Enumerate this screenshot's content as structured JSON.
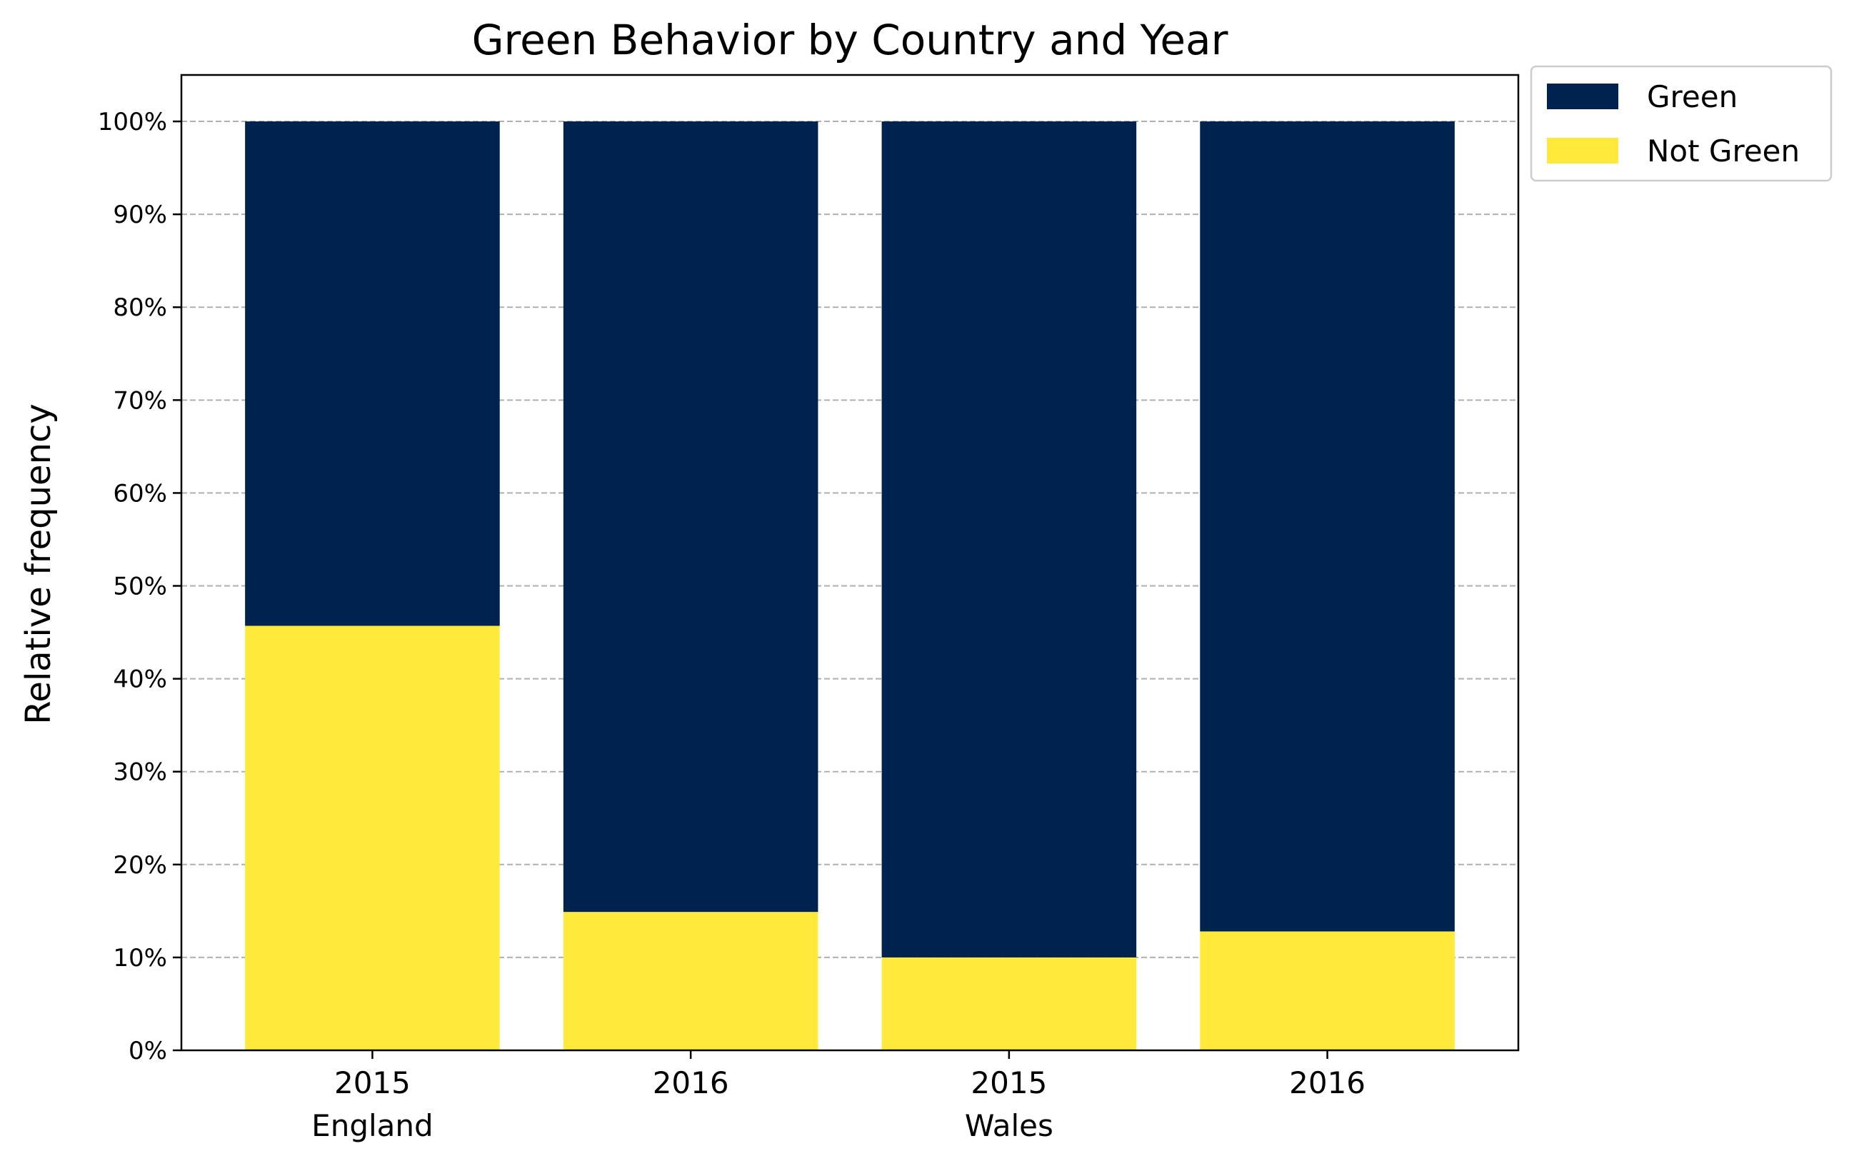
{
  "chart_data": {
    "type": "bar",
    "stacked": true,
    "title": "Green Behavior by Country and Year",
    "xlabel": "",
    "ylabel": "Relative frequency",
    "ylim": [
      0,
      105
    ],
    "y_ticks": [
      "0%",
      "10%",
      "20%",
      "30%",
      "40%",
      "50%",
      "60%",
      "70%",
      "80%",
      "90%",
      "100%"
    ],
    "categories": [
      "2015",
      "2016",
      "2015",
      "2016"
    ],
    "groups": [
      {
        "label": "England",
        "categories": [
          "2015",
          "2016"
        ]
      },
      {
        "label": "Wales",
        "categories": [
          "2015",
          "2016"
        ]
      }
    ],
    "series": [
      {
        "name": "Not Green",
        "color": "#ffe93b",
        "values": [
          45.7,
          14.9,
          10.0,
          12.8
        ]
      },
      {
        "name": "Green",
        "color": "#00224e",
        "values": [
          54.3,
          85.1,
          90.0,
          87.2
        ]
      }
    ],
    "legend_order": [
      "Green",
      "Not Green"
    ],
    "legend_position": "outside top-right",
    "grid": "y dashed"
  }
}
